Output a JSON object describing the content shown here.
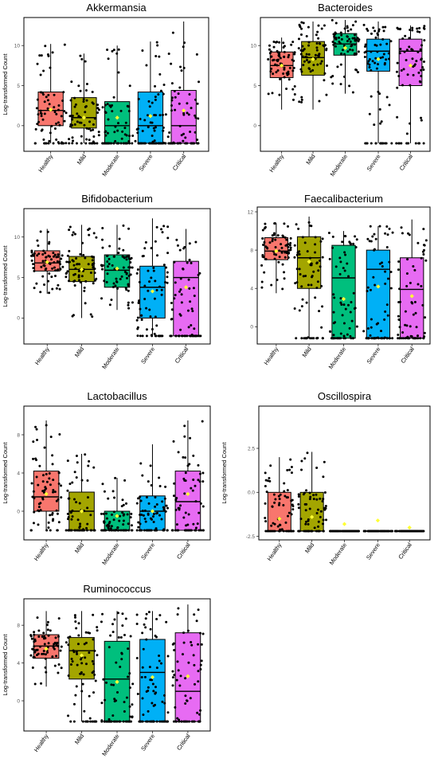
{
  "colors": {
    "Healthy": "#F8766D",
    "Mild": "#A3A500",
    "Moderate": "#00BF7D",
    "Severe": "#00B0F6",
    "Critical": "#E76BF3",
    "mean_marker": "#FFFF33",
    "points": "#000000"
  },
  "chart_data": [
    {
      "type": "box",
      "title": "Akkermansia",
      "ylabel": "Log-transformed Count",
      "categories": [
        "Healthy",
        "Mild",
        "Moderate",
        "Severe",
        "Critical"
      ],
      "yticks": [
        "0",
        "5",
        "10"
      ],
      "ylim": [
        -3.2,
        13.5
      ],
      "boxes": [
        {
          "q1": 0.0,
          "median": 1.9,
          "q3": 4.2,
          "min": -2.2,
          "max": 10.2,
          "mean": 2.0
        },
        {
          "q1": -0.3,
          "median": 1.0,
          "q3": 3.5,
          "min": -2.2,
          "max": 9.0,
          "mean": 1.0
        },
        {
          "q1": -2.2,
          "median": 0.0,
          "q3": 3.0,
          "min": -2.2,
          "max": 10.0,
          "mean": 1.0
        },
        {
          "q1": -2.2,
          "median": 0.0,
          "q3": 4.2,
          "min": -2.2,
          "max": 10.5,
          "mean": 1.2
        },
        {
          "q1": -2.2,
          "median": 0.0,
          "q3": 4.4,
          "min": -2.2,
          "max": 13.0,
          "mean": 1.9
        }
      ]
    },
    {
      "type": "box",
      "title": "Bacteroides",
      "ylabel": "",
      "categories": [
        "Healthy",
        "Mild",
        "Moderate",
        "Severe",
        "Critical"
      ],
      "yticks": [
        "0",
        "5",
        "10"
      ],
      "ylim": [
        -3.2,
        13.5
      ],
      "boxes": [
        {
          "q1": 6.0,
          "median": 7.5,
          "q3": 9.2,
          "min": 2.0,
          "max": 11.0,
          "mean": 7.5
        },
        {
          "q1": 6.3,
          "median": 8.5,
          "q3": 10.5,
          "min": 2.0,
          "max": 13.0,
          "mean": 8.3
        },
        {
          "q1": 8.8,
          "median": 10.2,
          "q3": 11.5,
          "min": 4.0,
          "max": 13.2,
          "mean": 9.7
        },
        {
          "q1": 6.8,
          "median": 9.3,
          "q3": 10.8,
          "min": -2.2,
          "max": 13.0,
          "mean": 8.3
        },
        {
          "q1": 5.0,
          "median": 9.3,
          "q3": 10.8,
          "min": -2.2,
          "max": 12.5,
          "mean": 7.5
        }
      ]
    },
    {
      "type": "box",
      "title": "Bifidobacterium",
      "ylabel": "Log-transformed Count",
      "categories": [
        "Healthy",
        "Mild",
        "Moderate",
        "Severe",
        "Critical"
      ],
      "yticks": [
        "0",
        "5",
        "10"
      ],
      "ylim": [
        -3.2,
        13.5
      ],
      "boxes": [
        {
          "q1": 5.8,
          "median": 6.8,
          "q3": 8.3,
          "min": 3.0,
          "max": 11.0,
          "mean": 6.9
        },
        {
          "q1": 4.5,
          "median": 6.0,
          "q3": 7.6,
          "min": 0.0,
          "max": 11.5,
          "mean": 6.0
        },
        {
          "q1": 3.8,
          "median": 5.9,
          "q3": 7.8,
          "min": 1.0,
          "max": 11.5,
          "mean": 6.1
        },
        {
          "q1": 0.0,
          "median": 3.8,
          "q3": 6.4,
          "min": -2.2,
          "max": 12.3,
          "mean": 3.3
        },
        {
          "q1": -2.2,
          "median": 5.0,
          "q3": 7.0,
          "min": -2.2,
          "max": 11.0,
          "mean": 3.8
        }
      ]
    },
    {
      "type": "box",
      "title": "Faecalibacterium",
      "ylabel": "",
      "categories": [
        "Healthy",
        "Mild",
        "Moderate",
        "Severe",
        "Critical"
      ],
      "yticks": [
        "0",
        "4",
        "8",
        "12"
      ],
      "ylim": [
        -1.8,
        12.5
      ],
      "boxes": [
        {
          "q1": 7.0,
          "median": 7.9,
          "q3": 9.3,
          "min": 3.5,
          "max": 10.8,
          "mean": 7.9
        },
        {
          "q1": 4.0,
          "median": 7.2,
          "q3": 9.4,
          "min": -1.2,
          "max": 11.5,
          "mean": 6.8
        },
        {
          "q1": -1.2,
          "median": 5.1,
          "q3": 8.5,
          "min": -1.2,
          "max": 10.0,
          "mean": 2.9
        },
        {
          "q1": -1.2,
          "median": 6.0,
          "q3": 8.0,
          "min": -1.2,
          "max": 10.5,
          "mean": 4.2
        },
        {
          "q1": -1.2,
          "median": 3.9,
          "q3": 7.2,
          "min": -1.2,
          "max": 11.2,
          "mean": 3.2
        }
      ]
    },
    {
      "type": "box",
      "title": "Lactobacillus",
      "ylabel": "Log-transformed Count",
      "categories": [
        "Healthy",
        "Mild",
        "Moderate",
        "Severe",
        "Critical"
      ],
      "yticks": [
        "0",
        "4",
        "8"
      ],
      "ylim": [
        -3.0,
        11.0
      ],
      "boxes": [
        {
          "q1": 0.0,
          "median": 1.5,
          "q3": 4.2,
          "min": -2.0,
          "max": 9.5,
          "mean": 1.8
        },
        {
          "q1": -2.0,
          "median": 0.0,
          "q3": 2.0,
          "min": -2.0,
          "max": 6.0,
          "mean": 0.0
        },
        {
          "q1": -2.0,
          "median": -2.0,
          "q3": 0.0,
          "min": -2.0,
          "max": 3.5,
          "mean": -0.5
        },
        {
          "q1": -2.0,
          "median": 0.0,
          "q3": 1.6,
          "min": -2.0,
          "max": 7.0,
          "mean": 0.0
        },
        {
          "q1": -2.0,
          "median": 1.0,
          "q3": 4.2,
          "min": -2.0,
          "max": 9.5,
          "mean": 1.8
        }
      ]
    },
    {
      "type": "box",
      "title": "Oscillospira",
      "ylabel": "Log-transformed Count",
      "categories": [
        "Healthy",
        "Mild",
        "Moderate",
        "Severe",
        "Critical"
      ],
      "yticks": [
        "-2.5",
        "0.0",
        "2.5"
      ],
      "ylim": [
        -2.7,
        4.9
      ],
      "boxes": [
        {
          "q1": -2.2,
          "median": -2.2,
          "q3": 0.0,
          "min": -2.2,
          "max": 2.0,
          "mean": -1.5
        },
        {
          "q1": -2.2,
          "median": -2.2,
          "q3": 0.0,
          "min": -2.2,
          "max": 2.3,
          "mean": -1.4
        },
        {
          "q1": -2.2,
          "median": -2.2,
          "q3": -2.2,
          "min": -2.2,
          "max": -2.2,
          "mean": -1.8
        },
        {
          "q1": -2.2,
          "median": -2.2,
          "q3": -2.2,
          "min": -2.2,
          "max": -2.2,
          "mean": -1.6
        },
        {
          "q1": -2.2,
          "median": -2.2,
          "q3": -2.2,
          "min": -2.2,
          "max": -2.2,
          "mean": -2.0
        }
      ]
    },
    {
      "type": "box",
      "title": "Ruminococcus",
      "ylabel": "Log-transformed Count",
      "categories": [
        "Healthy",
        "Mild",
        "Moderate",
        "Severe",
        "Critical"
      ],
      "yticks": [
        "0",
        "4",
        "8"
      ],
      "ylim": [
        -3.2,
        10.8
      ],
      "boxes": [
        {
          "q1": 4.5,
          "median": 5.8,
          "q3": 7.0,
          "min": 1.5,
          "max": 9.5,
          "mean": 5.5
        },
        {
          "q1": 2.3,
          "median": 5.3,
          "q3": 6.7,
          "min": -2.2,
          "max": 9.5,
          "mean": 4.8
        },
        {
          "q1": -2.2,
          "median": 2.3,
          "q3": 6.3,
          "min": -2.2,
          "max": 9.5,
          "mean": 2.0
        },
        {
          "q1": -2.2,
          "median": 3.0,
          "q3": 6.5,
          "min": -2.2,
          "max": 9.5,
          "mean": 2.5
        },
        {
          "q1": -2.2,
          "median": 1.0,
          "q3": 7.2,
          "min": -2.2,
          "max": 10.2,
          "mean": 2.6
        }
      ]
    }
  ]
}
